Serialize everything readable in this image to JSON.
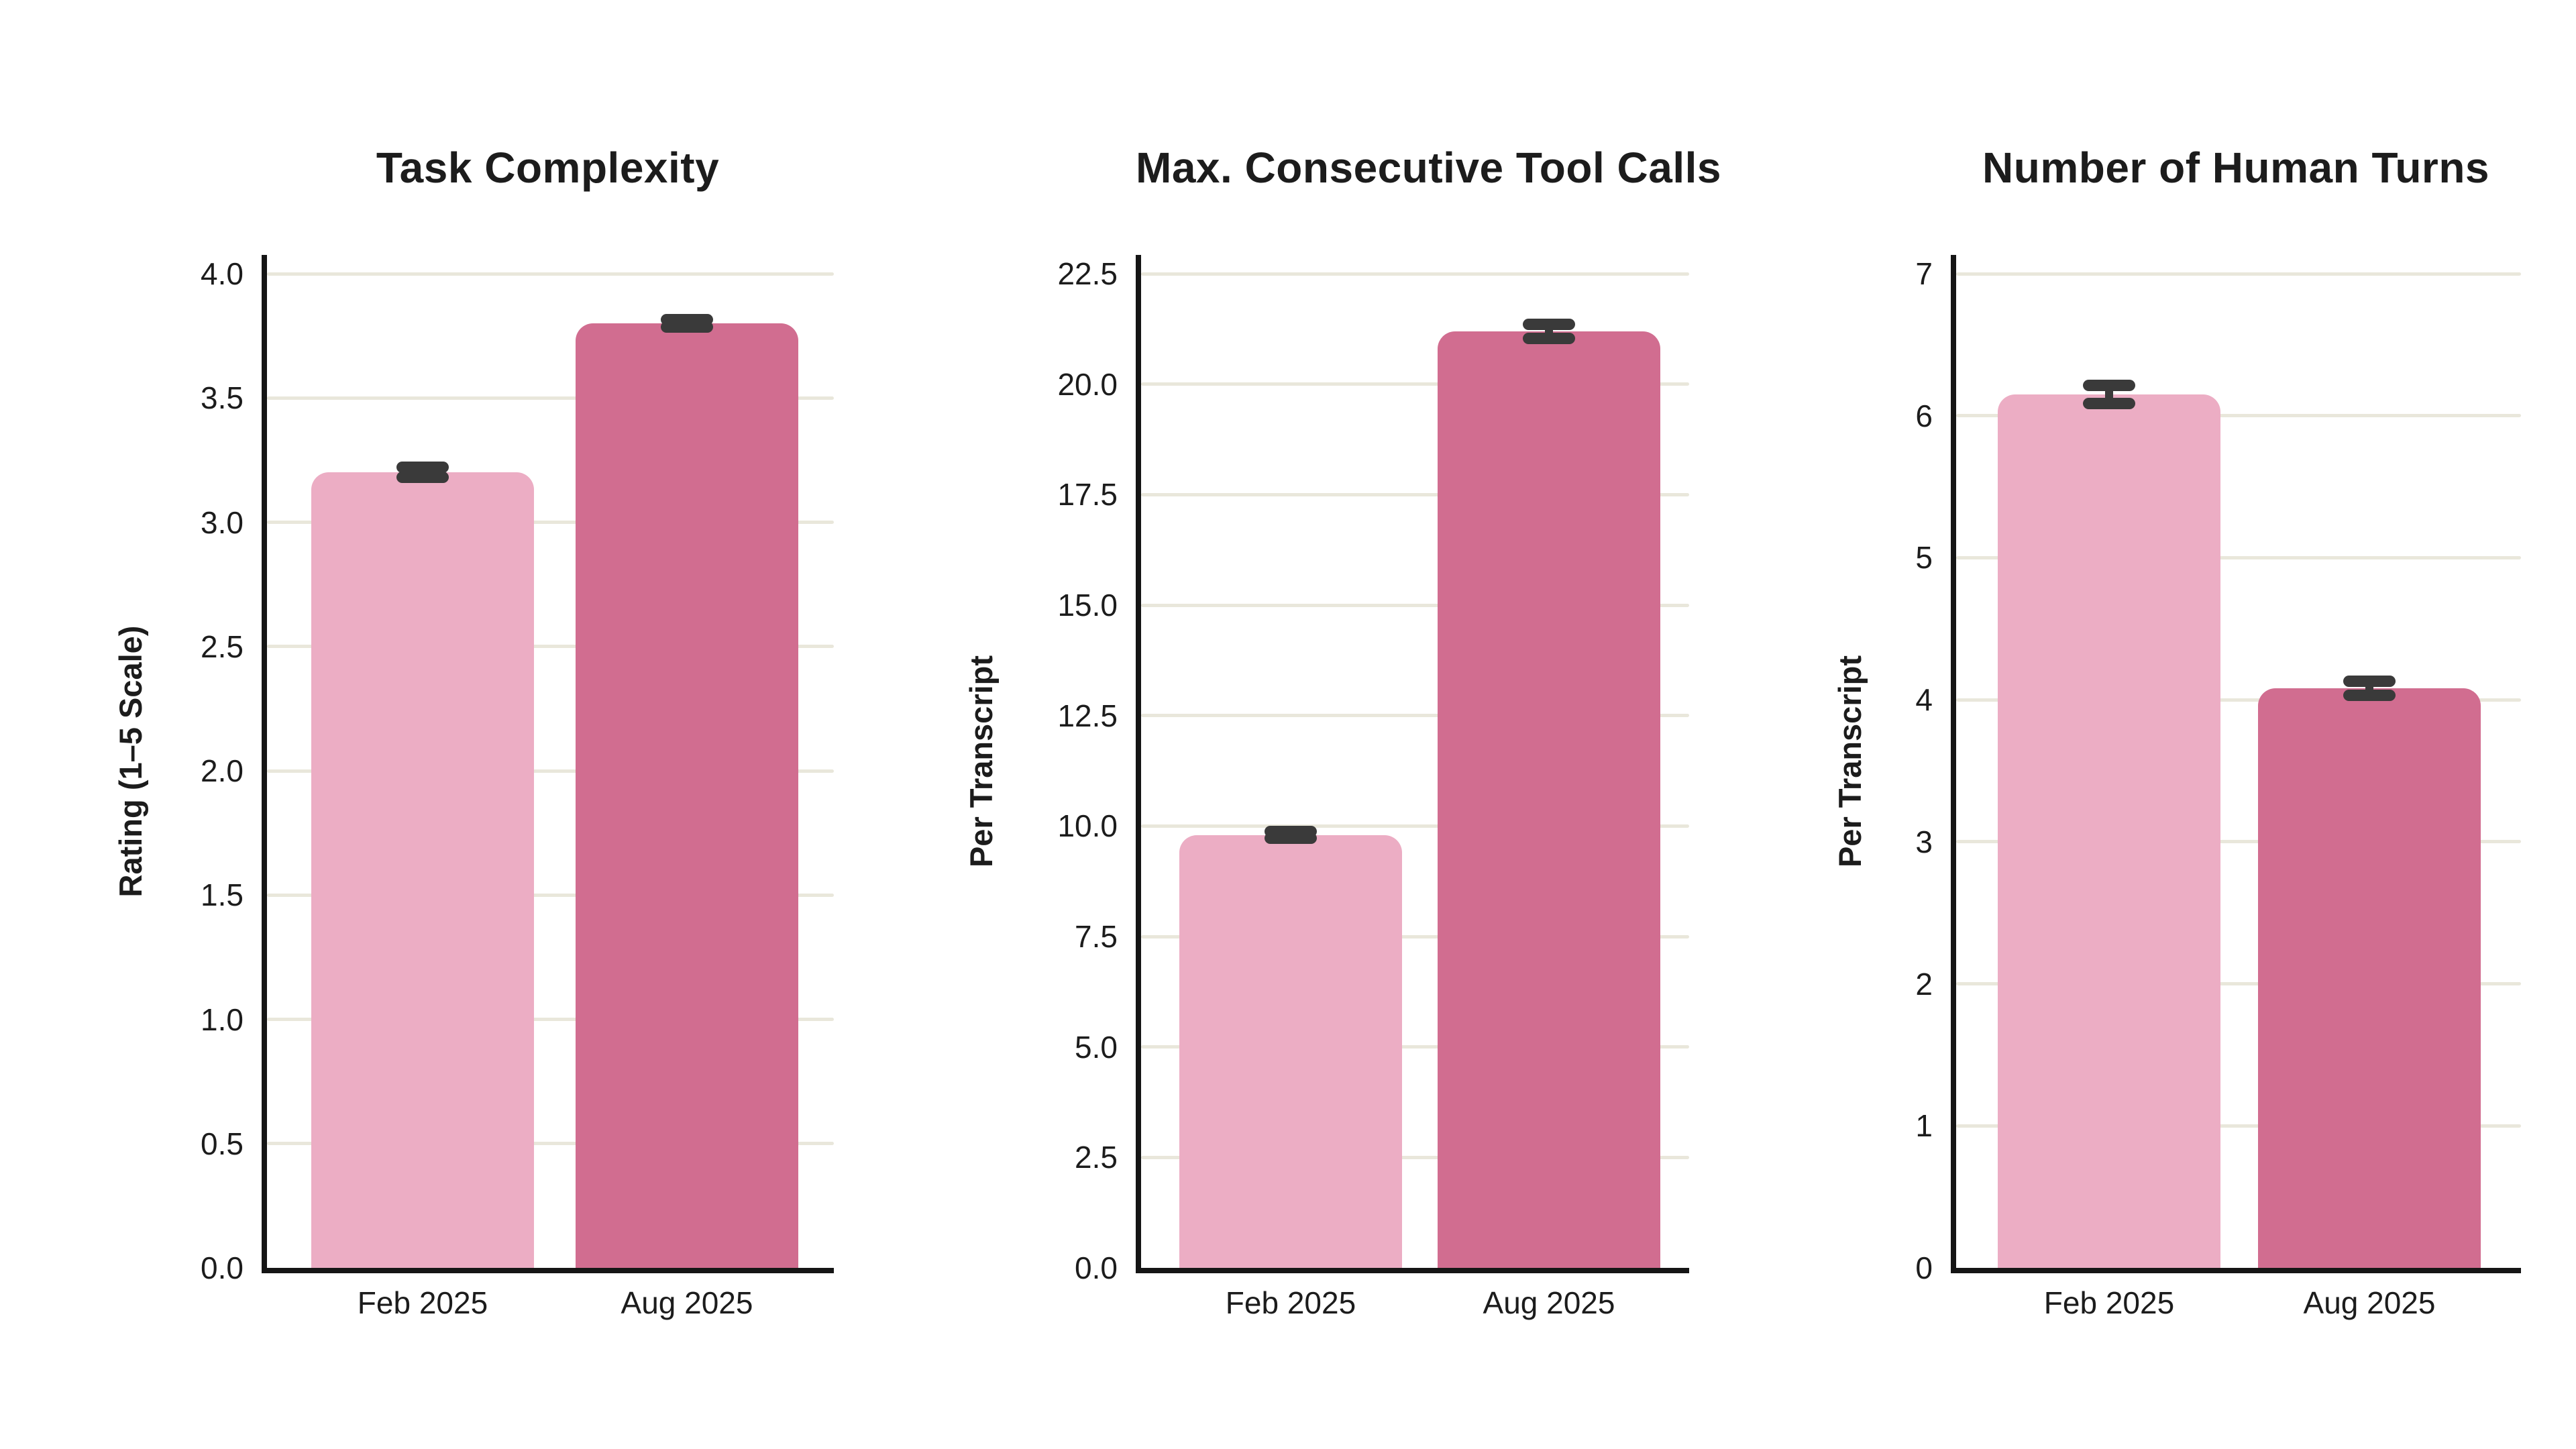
{
  "style": {
    "background": "#ffffff",
    "grid_color": "#e9e7db",
    "axis_color": "#151515",
    "text_color": "#1c1c1c",
    "error_color": "#3a3a3a",
    "feb_bar_color": "#ecadc4",
    "aug_bar_color": "#d16d90"
  },
  "chart_data": [
    {
      "type": "bar",
      "title": "Task Complexity",
      "ylabel": "Rating (1–5 Scale)",
      "xlabel": "",
      "categories": [
        "Feb 2025",
        "Aug 2025"
      ],
      "values": [
        3.2,
        3.8
      ],
      "errors": [
        0.02,
        0.015
      ],
      "bar_colors": [
        "#ecadc4",
        "#d16d90"
      ],
      "ylim": [
        0,
        4.0
      ],
      "yticks": [
        0,
        0.5,
        1.0,
        1.5,
        2.0,
        2.5,
        3.0,
        3.5,
        4.0
      ],
      "ytick_labels": [
        "0.0",
        "0.5",
        "1.0",
        "1.5",
        "2.0",
        "2.5",
        "3.0",
        "3.5",
        "4.0"
      ],
      "grid": true,
      "legend": "none"
    },
    {
      "type": "bar",
      "title": "Max. Consecutive Tool Calls",
      "ylabel": "Per Transcript",
      "xlabel": "",
      "categories": [
        "Feb 2025",
        "Aug 2025"
      ],
      "values": [
        9.8,
        21.2
      ],
      "errors": [
        0.08,
        0.16
      ],
      "bar_colors": [
        "#ecadc4",
        "#d16d90"
      ],
      "ylim": [
        0,
        22.5
      ],
      "yticks": [
        0,
        2.5,
        5.0,
        7.5,
        10.0,
        12.5,
        15.0,
        17.5,
        20.0,
        22.5
      ],
      "ytick_labels": [
        "0.0",
        "2.5",
        "5.0",
        "7.5",
        "10.0",
        "12.5",
        "15.0",
        "17.5",
        "20.0",
        "22.5"
      ],
      "grid": true,
      "legend": "none"
    },
    {
      "type": "bar",
      "title": "Number of Human Turns",
      "ylabel": "Per Transcript",
      "xlabel": "",
      "categories": [
        "Feb 2025",
        "Aug 2025"
      ],
      "values": [
        6.15,
        4.08
      ],
      "errors": [
        0.065,
        0.05
      ],
      "bar_colors": [
        "#ecadc4",
        "#d16d90"
      ],
      "ylim": [
        0,
        7
      ],
      "yticks": [
        0,
        1,
        2,
        3,
        4,
        5,
        6,
        7
      ],
      "ytick_labels": [
        "0",
        "1",
        "2",
        "3",
        "4",
        "5",
        "6",
        "7"
      ],
      "grid": true,
      "legend": "none"
    }
  ]
}
